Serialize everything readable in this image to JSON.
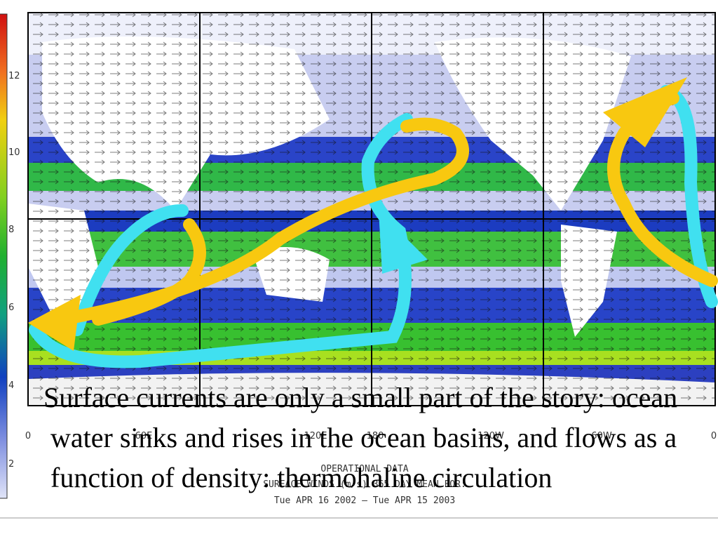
{
  "colorbar": {
    "tick_labels": [
      "12",
      "10",
      "8",
      "6",
      "4",
      "2"
    ]
  },
  "map": {
    "lon_labels": [
      "0",
      "60E",
      "120E",
      "180",
      "120W",
      "60W",
      "0"
    ],
    "caption": [
      "OPERATIONAL DATA",
      "SURFACE WINDS (m/s) 365 DAY MEAN FOR:",
      "Tue APR 16 2002 – Tue APR 15 2003"
    ]
  },
  "slide_text": "Surface currents are only a small part of the story: ocean water sinks and rises in the ocean basins, and flows as a function of density: thermohaline circulation"
}
